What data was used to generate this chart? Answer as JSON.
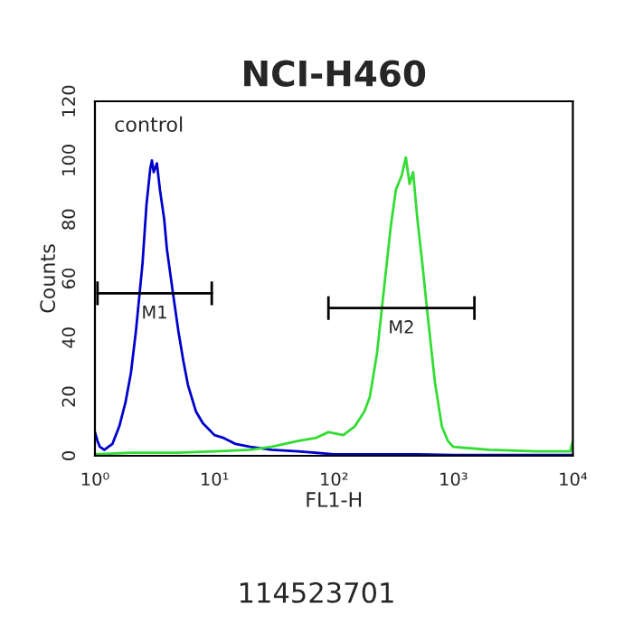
{
  "chart_data": {
    "type": "line",
    "title": "NCI-H460",
    "xlabel": "FL1-H",
    "ylabel": "Counts",
    "log": "x",
    "xlim": [
      1,
      10000
    ],
    "xticks": [
      {
        "value": 1,
        "label": "10⁰"
      },
      {
        "value": 10,
        "label": "10¹"
      },
      {
        "value": 100,
        "label": "10²"
      },
      {
        "value": 1000,
        "label": "10³"
      },
      {
        "value": 10000,
        "label": "10⁴"
      }
    ],
    "ylim": [
      0,
      120
    ],
    "yticks": [
      0,
      20,
      40,
      60,
      80,
      100,
      120
    ],
    "grid": false,
    "legend": false,
    "series": [
      {
        "color": "#0000cc",
        "x": [
          1,
          1.05,
          1.1,
          1.2,
          1.4,
          1.6,
          1.8,
          2.0,
          2.2,
          2.5,
          2.7,
          2.9,
          3.0,
          3.1,
          3.3,
          3.5,
          3.8,
          4.0,
          4.5,
          5.0,
          5.5,
          6.0,
          7.0,
          8.0,
          10,
          12,
          15,
          20,
          30,
          50,
          70,
          100,
          200,
          500,
          1000,
          3000,
          10000
        ],
        "values": [
          8,
          5,
          3,
          2,
          4,
          10,
          18,
          28,
          42,
          65,
          85,
          97,
          100,
          96,
          99,
          90,
          80,
          70,
          55,
          42,
          32,
          24,
          15,
          11,
          7,
          6,
          4,
          3,
          2,
          1.5,
          1,
          0.5,
          0.5,
          0.5,
          0.3,
          0.3,
          0.3
        ]
      },
      {
        "color": "#33dd33",
        "x": [
          1,
          2,
          5,
          10,
          20,
          30,
          50,
          70,
          90,
          120,
          150,
          180,
          200,
          230,
          260,
          300,
          330,
          370,
          400,
          430,
          460,
          500,
          550,
          600,
          700,
          800,
          900,
          1000,
          2000,
          5000,
          9500,
          10000
        ],
        "values": [
          0.5,
          1,
          1,
          1.5,
          2,
          3,
          5,
          6,
          8,
          7,
          10,
          15,
          20,
          35,
          55,
          78,
          90,
          95,
          101,
          92,
          96,
          80,
          65,
          50,
          25,
          10,
          5,
          3,
          2,
          1.5,
          1.5,
          5
        ]
      },
      {
        "name": "M1",
        "color": "#000000",
        "x": [
          1.05,
          9.5
        ],
        "values": [
          55,
          55
        ],
        "errors": [
          4,
          4
        ]
      },
      {
        "name": "M2",
        "color": "#000000",
        "x": [
          90,
          1500
        ],
        "values": [
          50,
          50
        ],
        "errors": [
          4,
          4
        ]
      }
    ],
    "annotations": [
      "control",
      "114523701"
    ]
  }
}
